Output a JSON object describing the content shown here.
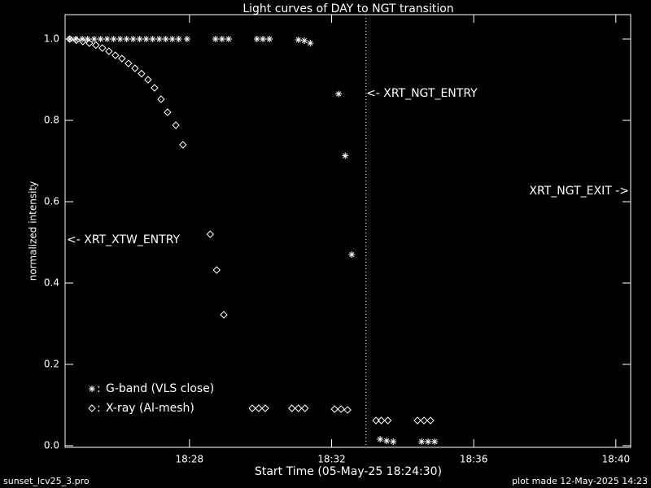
{
  "chart_data": {
    "type": "scatter",
    "title": "Light curves of DAY to NGT transition",
    "x_label": "Start Time (05-May-25 18:24:30)",
    "y_label": "normalized intensity",
    "xlim": [
      0,
      955
    ],
    "ylim": [
      -0.004,
      1.06
    ],
    "xticks": [
      {
        "value": 210,
        "label": "18:28"
      },
      {
        "value": 450,
        "label": "18:32"
      },
      {
        "value": 690,
        "label": "18:36"
      },
      {
        "value": 930,
        "label": "18:40"
      }
    ],
    "yticks": [
      {
        "value": 0,
        "label": "0.0"
      },
      0.2,
      0.4,
      0.6,
      0.8,
      {
        "value": 1,
        "label": "1.0"
      }
    ],
    "legend_separator": ":",
    "series": [
      {
        "name": "G-band (VLS close)",
        "color": "#ffffff",
        "marker": "asterisk",
        "x": [
          8,
          18,
          29,
          38,
          49,
          60,
          71,
          82,
          93,
          104,
          115,
          126,
          137,
          148,
          159,
          170,
          181,
          192,
          206,
          254,
          265,
          276,
          324,
          334,
          345,
          394,
          404,
          414,
          462,
          473,
          484,
          532,
          543,
          554,
          602,
          613,
          624
        ],
        "values": [
          1,
          1,
          1,
          1,
          1,
          1,
          1,
          1,
          1,
          1,
          1,
          1,
          1,
          1,
          1,
          1,
          1,
          1,
          1,
          1,
          1,
          1,
          1,
          1,
          1,
          0.998,
          0.996,
          0.99,
          0.865,
          0.713,
          0.47,
          0.016,
          0.012,
          0.01,
          0.01,
          0.01,
          0.01
        ]
      },
      {
        "name": "X-ray (Al-mesh)",
        "color": "#ffffff",
        "marker": "diamond",
        "x": [
          8,
          19,
          30,
          41,
          52,
          63,
          74,
          85,
          96,
          107,
          118,
          129,
          140,
          151,
          162,
          173,
          187,
          199,
          245,
          256,
          268,
          316,
          327,
          338,
          383,
          394,
          405,
          455,
          466,
          477,
          525,
          534,
          545,
          595,
          606,
          617
        ],
        "values": [
          1,
          0.997,
          0.994,
          0.99,
          0.985,
          0.978,
          0.97,
          0.96,
          0.952,
          0.94,
          0.928,
          0.915,
          0.9,
          0.88,
          0.852,
          0.82,
          0.788,
          0.74,
          0.52,
          0.432,
          0.322,
          0.092,
          0.092,
          0.092,
          0.092,
          0.092,
          0.092,
          0.09,
          0.09,
          0.088,
          0.062,
          0.062,
          0.062,
          0.062,
          0.062,
          0.062
        ]
      }
    ],
    "vline": {
      "x": 508,
      "style": "dotted"
    },
    "annotations": [
      "<- XRT_NGT_ENTRY",
      "XRT_NGT_EXIT ->",
      "<- XRT_XTW_ENTRY"
    ],
    "footer_left": "sunset_lcv25_3.pro",
    "footer_right": "plot made 12-May-2025 14:23"
  }
}
